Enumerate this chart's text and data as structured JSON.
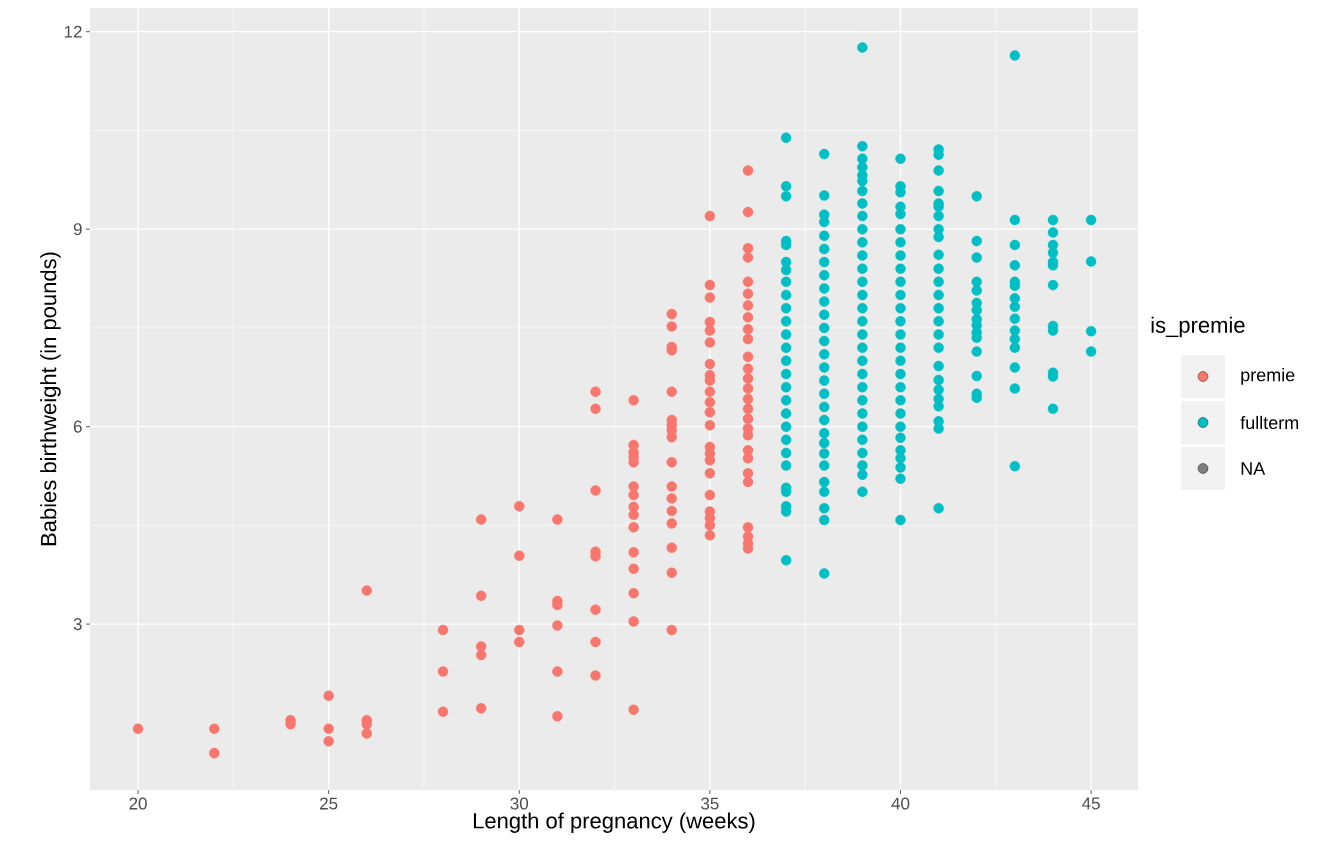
{
  "chart_data": {
    "type": "scatter",
    "xlabel": "Length of pregnancy (weeks)",
    "ylabel": "Babies birthweight (in pounds)",
    "legend_title": "is_premie",
    "xlim": [
      18.74,
      46.23
    ],
    "ylim": [
      0.48,
      12.36
    ],
    "xticks": [
      20,
      25,
      30,
      35,
      40,
      45
    ],
    "yticks": [
      3,
      6,
      9,
      12
    ],
    "grid": true,
    "legend": "right",
    "marker": "circle",
    "series": [
      {
        "name": "premie",
        "color": "#f8766d",
        "x": [
          20,
          22,
          22,
          24,
          24,
          25,
          25,
          25,
          26,
          26,
          26,
          26,
          28,
          28,
          28,
          29,
          29,
          29,
          29,
          29,
          30,
          30,
          30,
          30,
          31,
          31,
          31,
          31,
          31,
          31,
          32,
          32,
          32,
          32,
          32,
          32,
          32,
          32,
          33,
          33,
          33,
          33,
          33,
          33,
          33,
          33,
          33,
          33,
          33,
          33,
          33,
          33,
          33,
          34,
          34,
          34,
          34,
          34,
          34,
          34,
          34,
          34,
          34,
          34,
          34,
          34,
          34,
          34,
          34,
          34,
          35,
          35,
          35,
          35,
          35,
          35,
          35,
          35,
          35,
          35,
          35,
          35,
          35,
          35,
          35,
          35,
          35,
          35,
          35,
          35,
          35,
          35,
          36,
          36,
          36,
          36,
          36,
          36,
          36,
          36,
          36,
          36,
          36,
          36,
          36,
          36,
          36,
          36,
          36,
          36,
          36,
          36,
          36,
          36,
          36,
          36,
          36,
          36,
          36
        ],
        "values": [
          1.41,
          1.41,
          1.04,
          1.54,
          1.48,
          1.91,
          1.41,
          1.22,
          3.51,
          1.54,
          1.48,
          1.34,
          2.91,
          2.28,
          1.67,
          4.59,
          3.43,
          2.66,
          2.53,
          1.72,
          4.79,
          4.04,
          2.91,
          2.73,
          4.59,
          3.35,
          3.29,
          2.98,
          2.28,
          1.6,
          6.53,
          6.27,
          5.03,
          4.1,
          4.03,
          3.22,
          2.73,
          2.22,
          6.4,
          5.72,
          5.61,
          5.54,
          5.46,
          5.09,
          4.96,
          4.78,
          4.66,
          4.47,
          4.09,
          3.84,
          3.47,
          3.04,
          1.7,
          7.71,
          7.52,
          7.21,
          7.16,
          6.53,
          6.1,
          6.02,
          5.94,
          5.84,
          5.46,
          5.09,
          4.91,
          4.72,
          4.53,
          4.16,
          3.78,
          2.91,
          9.2,
          8.15,
          7.96,
          7.59,
          7.46,
          7.28,
          6.95,
          6.78,
          6.7,
          6.53,
          6.37,
          6.22,
          6.02,
          5.69,
          5.59,
          5.49,
          5.29,
          4.96,
          4.71,
          4.61,
          4.5,
          4.35,
          9.89,
          9.26,
          8.71,
          8.57,
          8.2,
          8.02,
          7.84,
          7.66,
          7.48,
          7.33,
          7.06,
          6.88,
          6.73,
          6.58,
          6.42,
          6.27,
          6.12,
          5.97,
          5.87,
          5.64,
          5.52,
          5.29,
          5.16,
          4.47,
          4.33,
          4.23,
          4.15
        ]
      },
      {
        "name": "fullterm",
        "color": "#00bfc4",
        "x": [
          37,
          37,
          37,
          37,
          37,
          37,
          37,
          37,
          37,
          37,
          37,
          37,
          37,
          37,
          37,
          37,
          37,
          37,
          37,
          37,
          37,
          37,
          37,
          37,
          37,
          37,
          37,
          38,
          38,
          38,
          38,
          38,
          38,
          38,
          38,
          38,
          38,
          38,
          38,
          38,
          38,
          38,
          38,
          38,
          38,
          38,
          38,
          38,
          38,
          38,
          38,
          38,
          38,
          38,
          38,
          39,
          39,
          39,
          39,
          39,
          39,
          39,
          39,
          39,
          39,
          39,
          39,
          39,
          39,
          39,
          39,
          39,
          39,
          39,
          39,
          39,
          39,
          39,
          39,
          39,
          39,
          39,
          39,
          39,
          39,
          40,
          40,
          40,
          40,
          40,
          40,
          40,
          40,
          40,
          40,
          40,
          40,
          40,
          40,
          40,
          40,
          40,
          40,
          40,
          40,
          40,
          40,
          40,
          40,
          40,
          40,
          40,
          41,
          41,
          41,
          41,
          41,
          41,
          41,
          41,
          41,
          41,
          41,
          41,
          41,
          41,
          41,
          41,
          41,
          41,
          41,
          41,
          41,
          41,
          41,
          41,
          41,
          42,
          42,
          42,
          42,
          42,
          42,
          42,
          42,
          42,
          42,
          42,
          42,
          42,
          42,
          42,
          43,
          43,
          43,
          43,
          43,
          43,
          43,
          43,
          43,
          43,
          43,
          43,
          43,
          43,
          43,
          44,
          44,
          44,
          44,
          44,
          44,
          44,
          44,
          44,
          44,
          44,
          44,
          45,
          45,
          45,
          45
        ],
        "values": [
          10.39,
          9.65,
          9.5,
          8.82,
          8.76,
          8.5,
          8.38,
          8.2,
          8.0,
          7.8,
          7.6,
          7.4,
          7.2,
          7.0,
          6.8,
          6.6,
          6.4,
          6.2,
          6.0,
          5.8,
          5.6,
          5.41,
          5.07,
          5.01,
          4.79,
          4.71,
          3.97,
          10.14,
          9.51,
          9.22,
          9.11,
          8.9,
          8.7,
          8.5,
          8.3,
          8.1,
          7.9,
          7.7,
          7.5,
          7.3,
          7.1,
          6.9,
          6.7,
          6.5,
          6.3,
          6.1,
          5.9,
          5.75,
          5.59,
          5.41,
          5.16,
          5.01,
          4.76,
          4.58,
          3.77,
          11.76,
          10.26,
          10.07,
          9.94,
          9.82,
          9.73,
          9.58,
          9.39,
          9.2,
          9.0,
          8.8,
          8.6,
          8.4,
          8.2,
          8.0,
          7.8,
          7.6,
          7.4,
          7.2,
          7.0,
          6.8,
          6.6,
          6.4,
          6.2,
          6.0,
          5.8,
          5.6,
          5.41,
          5.27,
          5.01,
          10.07,
          9.65,
          9.56,
          9.34,
          9.23,
          9.0,
          8.8,
          8.6,
          8.4,
          8.2,
          8.0,
          7.8,
          7.6,
          7.4,
          7.2,
          7.0,
          6.8,
          6.6,
          6.4,
          6.2,
          6.0,
          5.83,
          5.64,
          5.52,
          5.38,
          5.21,
          4.58,
          10.21,
          10.13,
          9.89,
          9.58,
          9.39,
          9.34,
          9.2,
          9.0,
          8.88,
          8.61,
          8.4,
          8.2,
          8.0,
          7.8,
          7.6,
          7.4,
          7.2,
          6.92,
          6.71,
          6.56,
          6.42,
          6.31,
          6.08,
          5.97,
          4.76,
          9.5,
          8.82,
          8.57,
          8.2,
          8.07,
          7.88,
          7.77,
          7.63,
          7.54,
          7.43,
          7.35,
          7.14,
          6.77,
          6.5,
          6.44,
          11.64,
          9.14,
          8.76,
          8.45,
          8.2,
          8.14,
          7.95,
          7.82,
          7.64,
          7.46,
          7.33,
          7.2,
          6.9,
          6.58,
          5.4,
          9.14,
          8.95,
          8.76,
          8.64,
          8.5,
          8.45,
          8.15,
          7.53,
          7.46,
          6.82,
          6.76,
          6.27,
          9.14,
          8.51,
          7.45,
          7.14
        ]
      },
      {
        "name": "NA",
        "color": "#7f7f7f"
      }
    ]
  }
}
